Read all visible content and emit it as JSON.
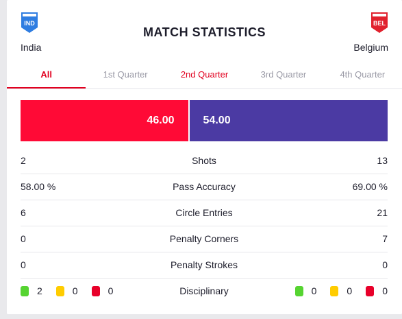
{
  "header": {
    "title": "MATCH STATISTICS",
    "home": {
      "code": "IND",
      "name": "India",
      "color": "#2f7de1"
    },
    "away": {
      "code": "BEL",
      "name": "Belgium",
      "color": "#e1212d"
    }
  },
  "tabs": [
    {
      "label": "All",
      "active": true
    },
    {
      "label": "1st Quarter",
      "active": false
    },
    {
      "label": "2nd Quarter",
      "active": false
    },
    {
      "label": "3rd Quarter",
      "active": false
    },
    {
      "label": "4th Quarter",
      "active": false
    }
  ],
  "possession": {
    "home": "46.00",
    "away": "54.00",
    "home_color": "#ff0a36",
    "away_color": "#4b3aa3"
  },
  "stats": [
    {
      "label": "Shots",
      "home": "2",
      "away": "13"
    },
    {
      "label": "Pass Accuracy",
      "home": "58.00 %",
      "away": "69.00 %"
    },
    {
      "label": "Circle Entries",
      "home": "6",
      "away": "21"
    },
    {
      "label": "Penalty Corners",
      "home": "0",
      "away": "7"
    },
    {
      "label": "Penalty Strokes",
      "home": "0",
      "away": "0"
    }
  ],
  "disciplinary": {
    "label": "Disciplinary",
    "home": {
      "green": "2",
      "yellow": "0",
      "red": "0"
    },
    "away": {
      "green": "0",
      "yellow": "0",
      "red": "0"
    }
  }
}
